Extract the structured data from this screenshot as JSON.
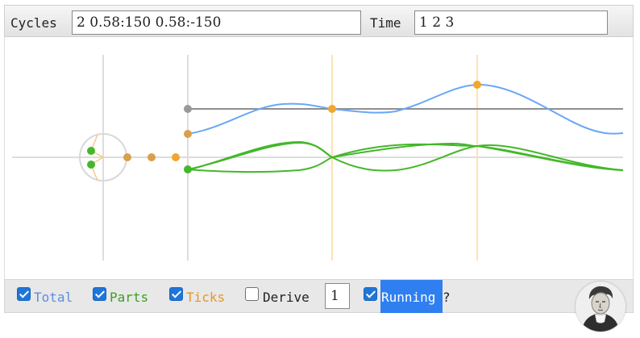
{
  "toolbar": {
    "cycles_label": "Cycles",
    "cycles_value": "2 0.58:150 0.58:-150",
    "time_label": "Time",
    "time_value": "1 2 3"
  },
  "controls": {
    "total_label": "Total",
    "total_checked": true,
    "parts_label": "Parts",
    "parts_checked": true,
    "ticks_label": "Ticks",
    "ticks_checked": true,
    "derive_label": "Derive",
    "derive_checked": false,
    "derive_value": "1",
    "running_label": "Running",
    "running_suffix": "?",
    "running_checked": true
  },
  "colors": {
    "total": "#6aa7f6",
    "parts": "#44b72a",
    "ticks": "#f0a72c",
    "axis": "#d0d0d0",
    "constant": "#8f8f8f",
    "running_highlight": "#2f7ff0"
  },
  "icons": {
    "portrait": "fourier-portrait-icon"
  }
}
